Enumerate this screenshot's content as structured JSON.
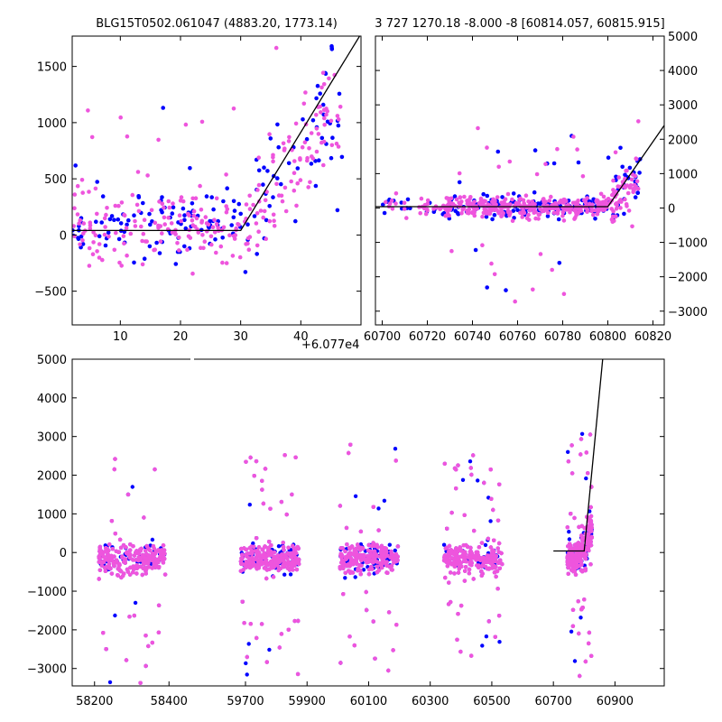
{
  "figure": {
    "panel_a_title": "BLG15T0502.061047 (4883.20, 1773.14)",
    "panel_b_title": "3 727 1270.18 -8.000 -8 [60814.057, 60815.915]",
    "offset_label": "+6.077e4"
  },
  "colors": {
    "series1": "#0000ff",
    "series2": "#ee55dd",
    "model": "#000000"
  },
  "chart_data": [
    {
      "type": "scatter",
      "title": "BLG15T0502.061047 (4883.20, 1773.14)",
      "xlim": [
        2,
        50
      ],
      "ylim": [
        -800,
        1770
      ],
      "xticks": [
        10,
        20,
        30,
        40
      ],
      "yticks": [
        -500,
        0,
        500,
        1000,
        1500
      ],
      "model_line": {
        "x": [
          2,
          30,
          50
        ],
        "y": [
          40,
          40,
          1790
        ]
      },
      "series": [
        {
          "color": "#0000ff",
          "approx_points": 160
        },
        {
          "color": "#ee55dd",
          "approx_points": 260
        }
      ]
    },
    {
      "type": "scatter",
      "title": "3 727 1270.18 -8.000 -8 [60814.057, 60815.915]",
      "xlim": [
        60697,
        60825
      ],
      "ylim": [
        -3400,
        5000
      ],
      "xticks": [
        60700,
        60720,
        60740,
        60760,
        60780,
        60800,
        60820
      ],
      "yticks": [
        -3000,
        -2000,
        -1000,
        0,
        1000,
        2000,
        3000,
        4000,
        5000
      ],
      "y_axis_side": "right",
      "model_line": {
        "x": [
          60697,
          60800,
          60825
        ],
        "y": [
          40,
          40,
          2400
        ]
      },
      "series": [
        {
          "color": "#0000ff",
          "approx_points": 200
        },
        {
          "color": "#ee55dd",
          "approx_points": 420
        }
      ]
    },
    {
      "type": "scatter",
      "broken_x_axis": true,
      "xlim": [
        58140,
        61060
      ],
      "ylim": [
        -3450,
        5000
      ],
      "xticks": [
        58200,
        58400,
        59700,
        59900,
        60100,
        60300,
        60500,
        60700,
        60900
      ],
      "yticks": [
        -3000,
        -2000,
        -1000,
        0,
        1000,
        2000,
        3000,
        4000,
        5000
      ],
      "segments": [
        {
          "x": [
            58140,
            58460
          ]
        },
        {
          "x": [
            59530,
            61060
          ]
        }
      ],
      "seasons": [
        58300,
        59780,
        60100,
        60440,
        60785
      ],
      "model_line": {
        "x": [
          60700,
          60800,
          60860
        ],
        "y": [
          40,
          40,
          5000
        ]
      },
      "series": [
        {
          "color": "#0000ff",
          "approx_points": 1500
        },
        {
          "color": "#ee55dd",
          "approx_points": 2600
        }
      ]
    }
  ]
}
